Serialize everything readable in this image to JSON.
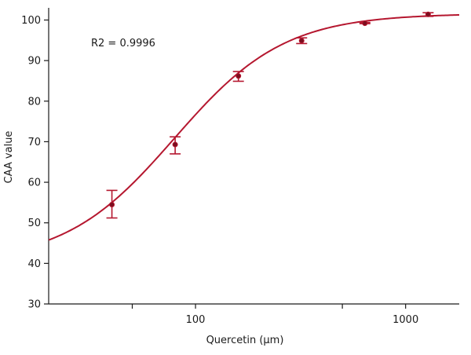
{
  "chart_data": {
    "type": "scatter",
    "title": "",
    "xlabel": "Quercetin (μm)",
    "ylabel": "CAA value",
    "x_scale": "log",
    "xlim": [
      20,
      1800
    ],
    "ylim": [
      30,
      103
    ],
    "x_ticks": [
      {
        "value": 100,
        "label": "100"
      },
      {
        "value": 1000,
        "label": "1000"
      }
    ],
    "x_major_ticks": [
      50,
      100,
      500,
      1000
    ],
    "y_ticks": [
      {
        "value": 30,
        "label": "30"
      },
      {
        "value": 40,
        "label": "40"
      },
      {
        "value": 50,
        "label": "50"
      },
      {
        "value": 60,
        "label": "60"
      },
      {
        "value": 70,
        "label": "70"
      },
      {
        "value": 80,
        "label": "80"
      },
      {
        "value": 90,
        "label": "90"
      },
      {
        "value": 100,
        "label": "100"
      }
    ],
    "grid": false,
    "annotation": "R2 = 0.9996",
    "color": "#b5172f",
    "points": [
      {
        "x": 40,
        "y": 54.5,
        "err_low": 51.2,
        "err_high": 58.0
      },
      {
        "x": 80,
        "y": 69.3,
        "err_low": 67.0,
        "err_high": 71.2
      },
      {
        "x": 160,
        "y": 86.2,
        "err_low": 84.9,
        "err_high": 87.3
      },
      {
        "x": 320,
        "y": 94.9,
        "err_low": 94.2,
        "err_high": 95.6
      },
      {
        "x": 640,
        "y": 99.2,
        "err_low": 99.1,
        "err_high": 99.4
      },
      {
        "x": 1280,
        "y": 101.4,
        "err_low": 100.9,
        "err_high": 101.8
      }
    ],
    "fit": {
      "type": "sigmoid-log",
      "bottom": 40.1,
      "top": 101.6,
      "ec50": 79.4,
      "hill": 1.66
    }
  }
}
